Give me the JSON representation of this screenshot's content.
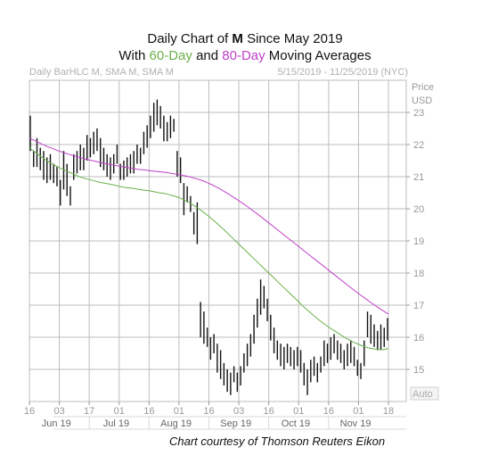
{
  "title": {
    "line1_prefix": "Daily Chart of ",
    "line1_ticker": "M",
    "line1_suffix": " Since May 2019",
    "line2_prefix": "With ",
    "line2_sma60": "60-Day",
    "line2_mid": " and ",
    "line2_sma80": "80-Day",
    "line2_suffix": " Moving Averages"
  },
  "subheader": {
    "left": "Daily BarHLC M, SMA M, SMA M",
    "right": "5/15/2019 - 11/25/2019 (NYC)"
  },
  "axis": {
    "price_label": "Price",
    "currency_label": "USD",
    "auto_label": "Auto"
  },
  "credit": "Chart courtesy of Thomson Reuters Eikon",
  "colors": {
    "sma60": "#6ab04a",
    "sma80": "#c040c8",
    "bars": "#111111",
    "grid": "#bdbdbd"
  },
  "chart_data": {
    "type": "bar",
    "subtype": "ohlc-hlc",
    "ylim": [
      14,
      24
    ],
    "y_ticks": [
      15,
      16,
      17,
      18,
      19,
      20,
      21,
      22,
      23
    ],
    "x_day_ticks": [
      "16",
      "03",
      "17",
      "01",
      "16",
      "01",
      "16",
      "03",
      "16",
      "01",
      "16",
      "01",
      "18"
    ],
    "x_month_labels": [
      "Jun 19",
      "Jul 19",
      "Aug 19",
      "Sep 19",
      "Oct 19",
      "Nov 19"
    ],
    "bars": [
      [
        22.9,
        21.8
      ],
      [
        21.8,
        21.3
      ],
      [
        22.2,
        21.3
      ],
      [
        21.9,
        21.2
      ],
      [
        21.8,
        20.9
      ],
      [
        21.6,
        20.8
      ],
      [
        21.7,
        20.9
      ],
      [
        21.4,
        20.8
      ],
      [
        21.3,
        20.7
      ],
      [
        20.9,
        20.1
      ],
      [
        21.8,
        20.6
      ],
      [
        21.4,
        20.4
      ],
      [
        20.7,
        20.1
      ],
      [
        21.7,
        20.9
      ],
      [
        21.8,
        21.1
      ],
      [
        22.0,
        21.2
      ],
      [
        21.9,
        21.2
      ],
      [
        22.3,
        21.5
      ],
      [
        22.2,
        21.6
      ],
      [
        22.4,
        21.7
      ],
      [
        22.5,
        21.8
      ],
      [
        22.2,
        21.3
      ],
      [
        21.9,
        21.2
      ],
      [
        21.7,
        21.0
      ],
      [
        21.6,
        20.9
      ],
      [
        21.7,
        21.1
      ],
      [
        22.0,
        21.4
      ],
      [
        21.4,
        20.9
      ],
      [
        21.5,
        20.9
      ],
      [
        21.6,
        21.0
      ],
      [
        21.7,
        21.1
      ],
      [
        21.8,
        21.1
      ],
      [
        22.0,
        21.4
      ],
      [
        21.9,
        21.4
      ],
      [
        22.4,
        21.7
      ],
      [
        22.6,
        21.9
      ],
      [
        22.9,
        22.2
      ],
      [
        23.3,
        22.4
      ],
      [
        23.4,
        22.6
      ],
      [
        23.2,
        22.5
      ],
      [
        22.9,
        22.1
      ],
      [
        22.7,
        22.1
      ],
      [
        22.9,
        22.2
      ],
      [
        22.8,
        22.4
      ],
      [
        21.8,
        21.0
      ],
      [
        21.6,
        20.8
      ],
      [
        20.8,
        19.8
      ],
      [
        20.7,
        20.2
      ],
      [
        20.4,
        19.9
      ],
      [
        19.9,
        19.2
      ],
      [
        20.2,
        18.9
      ],
      [
        17.1,
        16.0
      ],
      [
        16.8,
        15.8
      ],
      [
        16.3,
        15.7
      ],
      [
        16.0,
        15.3
      ],
      [
        16.1,
        15.5
      ],
      [
        15.8,
        14.9
      ],
      [
        15.6,
        14.7
      ],
      [
        15.2,
        14.5
      ],
      [
        15.0,
        14.3
      ],
      [
        14.9,
        14.2
      ],
      [
        15.1,
        14.6
      ],
      [
        14.9,
        14.3
      ],
      [
        15.1,
        14.5
      ],
      [
        15.5,
        14.9
      ],
      [
        15.8,
        15.1
      ],
      [
        16.1,
        15.4
      ],
      [
        16.7,
        15.8
      ],
      [
        17.2,
        16.3
      ],
      [
        17.8,
        16.7
      ],
      [
        17.6,
        16.9
      ],
      [
        17.2,
        16.5
      ],
      [
        16.7,
        15.9
      ],
      [
        16.3,
        15.5
      ],
      [
        15.9,
        15.3
      ],
      [
        15.8,
        15.1
      ],
      [
        15.7,
        15.0
      ],
      [
        15.8,
        15.2
      ],
      [
        15.7,
        15.1
      ],
      [
        15.6,
        15.0
      ],
      [
        15.7,
        15.1
      ],
      [
        15.6,
        14.9
      ],
      [
        15.2,
        14.5
      ],
      [
        15.0,
        14.2
      ],
      [
        15.3,
        14.6
      ],
      [
        15.4,
        14.8
      ],
      [
        15.2,
        14.6
      ],
      [
        15.4,
        14.9
      ],
      [
        15.9,
        15.1
      ],
      [
        15.8,
        15.2
      ],
      [
        16.0,
        15.3
      ],
      [
        16.1,
        15.5
      ],
      [
        15.9,
        15.3
      ],
      [
        15.8,
        15.2
      ],
      [
        15.6,
        15.0
      ],
      [
        15.8,
        15.1
      ],
      [
        15.9,
        15.2
      ],
      [
        15.7,
        15.1
      ],
      [
        15.3,
        14.8
      ],
      [
        15.2,
        14.7
      ],
      [
        15.9,
        15.1
      ],
      [
        16.8,
        16.0
      ],
      [
        16.7,
        15.8
      ],
      [
        16.4,
        15.7
      ],
      [
        16.2,
        15.6
      ],
      [
        16.4,
        15.6
      ],
      [
        16.3,
        15.7
      ],
      [
        16.6,
        15.9
      ]
    ],
    "series": [
      {
        "name": "60-Day",
        "values": [
          21.9,
          21.78,
          21.66,
          21.55,
          21.45,
          21.36,
          21.28,
          21.21,
          21.14,
          21.07,
          21.0,
          20.95,
          20.91,
          20.87,
          20.83,
          20.8,
          20.77,
          20.74,
          20.7,
          20.67,
          20.65,
          20.63,
          20.6,
          20.58,
          20.56,
          20.53,
          20.5,
          20.48,
          20.44,
          20.4,
          20.35,
          20.28,
          20.2,
          20.1,
          20.0,
          19.88,
          19.76,
          19.63,
          19.49,
          19.35,
          19.2,
          19.05,
          18.9,
          18.75,
          18.6,
          18.45,
          18.3,
          18.15,
          18.0,
          17.85,
          17.7,
          17.55,
          17.4,
          17.25,
          17.1,
          16.95,
          16.81,
          16.68,
          16.55,
          16.43,
          16.32,
          16.22,
          16.12,
          16.02,
          15.93,
          15.85,
          15.78,
          15.72,
          15.67,
          15.64,
          15.62,
          15.62,
          15.65
        ]
      },
      {
        "name": "80-Day",
        "values": [
          22.2,
          22.12,
          22.03,
          21.95,
          21.88,
          21.81,
          21.75,
          21.69,
          21.64,
          21.59,
          21.54,
          21.5,
          21.46,
          21.42,
          21.38,
          21.35,
          21.32,
          21.29,
          21.26,
          21.23,
          21.21,
          21.19,
          21.17,
          21.15,
          21.13,
          21.1,
          21.07,
          21.04,
          21.0,
          20.95,
          20.9,
          20.83,
          20.75,
          20.66,
          20.56,
          20.45,
          20.34,
          20.22,
          20.1,
          19.97,
          19.84,
          19.7,
          19.56,
          19.42,
          19.28,
          19.14,
          19.0,
          18.86,
          18.72,
          18.58,
          18.44,
          18.3,
          18.16,
          18.02,
          17.88,
          17.74,
          17.6,
          17.46,
          17.33,
          17.2,
          17.07,
          16.95,
          16.83,
          16.72
        ]
      }
    ]
  }
}
